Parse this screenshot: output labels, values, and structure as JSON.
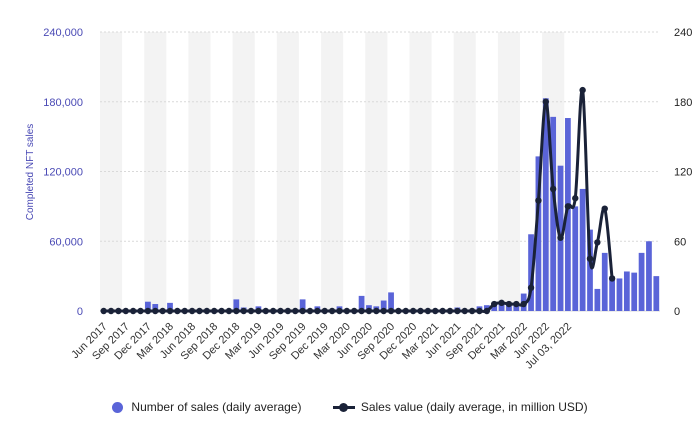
{
  "chart_data": {
    "type": "bar",
    "title": "",
    "ylabel": "Completed NFT sales",
    "ylim": [
      0,
      240000
    ],
    "y2lim": [
      0,
      240
    ],
    "y_ticks": [
      "0",
      "60,000",
      "120,000",
      "180,000",
      "240,000"
    ],
    "y2_ticks": [
      "0",
      "60",
      "120",
      "180",
      "240"
    ],
    "x_tick_labels": [
      "Jun 2017",
      "Sep 2017",
      "Dec 2017",
      "Mar 2018",
      "Jun 2018",
      "Sep 2018",
      "Dec 2018",
      "Mar 2019",
      "Jun 2019",
      "Sep 2019",
      "Dec 2019",
      "Mar 2020",
      "Jun 2020",
      "Sep 2020",
      "Dec 2020",
      "Mar 2021",
      "Jun 2021",
      "Sep 2021",
      "Dec 2021",
      "Mar 2022",
      "Jun 2022",
      "Jul 03, 2022"
    ],
    "grid": true,
    "legend_position": "bottom",
    "colors": {
      "bars": "#5a64d8",
      "line": "#1a2238",
      "band": "#f3f3f3"
    },
    "series": [
      {
        "name": "Number of sales (daily average)",
        "axis": "left",
        "kind": "bar",
        "values": [
          1000,
          1000,
          1000,
          1000,
          1000,
          1000,
          8000,
          6000,
          1000,
          7000,
          1000,
          1000,
          1000,
          1000,
          1000,
          1000,
          1000,
          1000,
          10000,
          3000,
          1000,
          4000,
          1000,
          1000,
          1000,
          1000,
          1000,
          10000,
          1000,
          4000,
          1000,
          1000,
          4000,
          1000,
          1000,
          13000,
          5000,
          4000,
          9000,
          16000,
          1000,
          1000,
          1000,
          1000,
          1000,
          1000,
          1000,
          1000,
          3000,
          1000,
          1000,
          4000,
          5000,
          6000,
          6000,
          7000,
          7000,
          15000,
          66000,
          133000,
          183000,
          167000,
          125000,
          166000,
          90000,
          105000,
          70000,
          19000,
          50000,
          27000,
          28000,
          34000,
          33000,
          50000,
          60000,
          30000
        ]
      },
      {
        "name": "Sales value (daily average, in million USD)",
        "axis": "right",
        "kind": "line",
        "values": [
          0,
          0,
          0,
          0,
          0,
          0,
          0,
          0,
          0,
          0,
          0,
          0,
          0,
          0,
          0,
          0,
          0,
          0,
          0,
          0,
          0,
          0,
          0,
          0,
          0,
          0,
          0,
          0,
          0,
          0,
          0,
          0,
          0,
          0,
          0,
          0,
          0,
          0,
          0,
          0,
          0,
          0,
          0,
          0,
          0,
          0,
          0,
          0,
          0,
          0,
          0,
          0,
          0,
          6,
          7,
          6,
          6,
          6,
          20,
          95,
          180,
          105,
          63,
          90,
          97,
          190,
          45,
          59,
          88,
          28
        ]
      }
    ]
  }
}
